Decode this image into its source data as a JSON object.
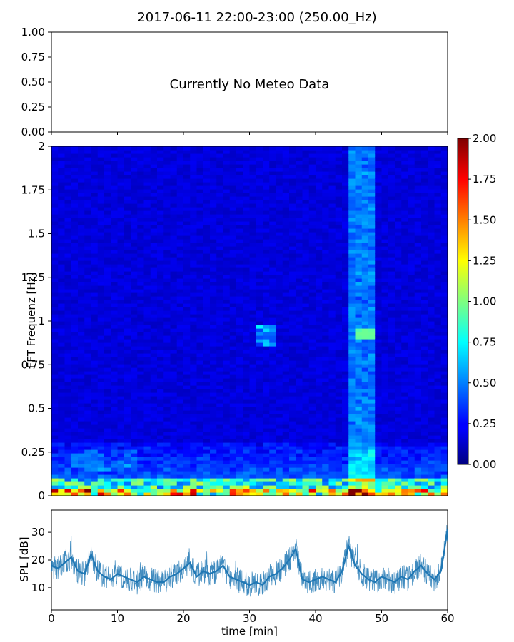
{
  "title": "2017-06-11 22:00-23:00 (250.00_Hz)",
  "meteo_panel": {
    "message": "Currently No Meteo Data",
    "yticks": [
      "0.00",
      "0.25",
      "0.50",
      "0.75",
      "1.00"
    ]
  },
  "spectrogram": {
    "ylabel": "FFT Frequenz [Hz]",
    "yticks": [
      "0",
      "0.25",
      "0.5",
      "0.75",
      "1",
      "1.25",
      "1.5",
      "1.75",
      "2"
    ],
    "colorbar_ticks": [
      "0.00",
      "0.25",
      "0.50",
      "0.75",
      "1.00",
      "1.25",
      "1.50",
      "1.75",
      "2.00"
    ],
    "colormap": "jet",
    "zlim": [
      0,
      2
    ]
  },
  "spl_panel": {
    "ylabel": "SPL [dB]",
    "yticks": [
      "10",
      "20",
      "30"
    ],
    "xticks": [
      "0",
      "10",
      "20",
      "30",
      "40",
      "50",
      "60"
    ],
    "xlabel": "time [min]",
    "line_color": "#1f77b4"
  },
  "chart_data": [
    {
      "type": "line",
      "panel": "meteo",
      "title": "2017-06-11 22:00-23:00 (250.00_Hz)",
      "xlim": [
        0,
        60
      ],
      "ylim": [
        0,
        1
      ],
      "series": []
    },
    {
      "type": "heatmap",
      "panel": "spectrogram",
      "xlim": [
        0,
        60
      ],
      "ylim": [
        0,
        2
      ],
      "zlim": [
        0,
        2
      ],
      "ylabel": "FFT Frequenz [Hz]",
      "colormap": "jet"
    },
    {
      "type": "line",
      "panel": "spl",
      "xlabel": "time [min]",
      "ylabel": "SPL [dB]",
      "xlim": [
        0,
        60
      ],
      "ylim": [
        2,
        38
      ],
      "x": [
        0,
        1,
        2,
        3,
        4,
        5,
        6,
        7,
        8,
        9,
        10,
        11,
        12,
        13,
        14,
        15,
        16,
        17,
        18,
        19,
        20,
        21,
        22,
        23,
        24,
        25,
        26,
        27,
        28,
        29,
        30,
        31,
        32,
        33,
        34,
        35,
        36,
        37,
        38,
        39,
        40,
        41,
        42,
        43,
        44,
        45,
        46,
        47,
        48,
        49,
        50,
        51,
        52,
        53,
        54,
        55,
        56,
        57,
        58,
        59,
        60
      ],
      "values": [
        18,
        17,
        19,
        21,
        16,
        15,
        22,
        16,
        14,
        13,
        15,
        14,
        13,
        12,
        14,
        13,
        12,
        12,
        14,
        15,
        17,
        19,
        14,
        16,
        15,
        16,
        18,
        14,
        13,
        12,
        11,
        12,
        11,
        14,
        15,
        17,
        20,
        24,
        13,
        12,
        13,
        14,
        13,
        12,
        16,
        25,
        18,
        15,
        13,
        12,
        14,
        13,
        12,
        14,
        13,
        16,
        18,
        15,
        13,
        16,
        31
      ]
    }
  ]
}
